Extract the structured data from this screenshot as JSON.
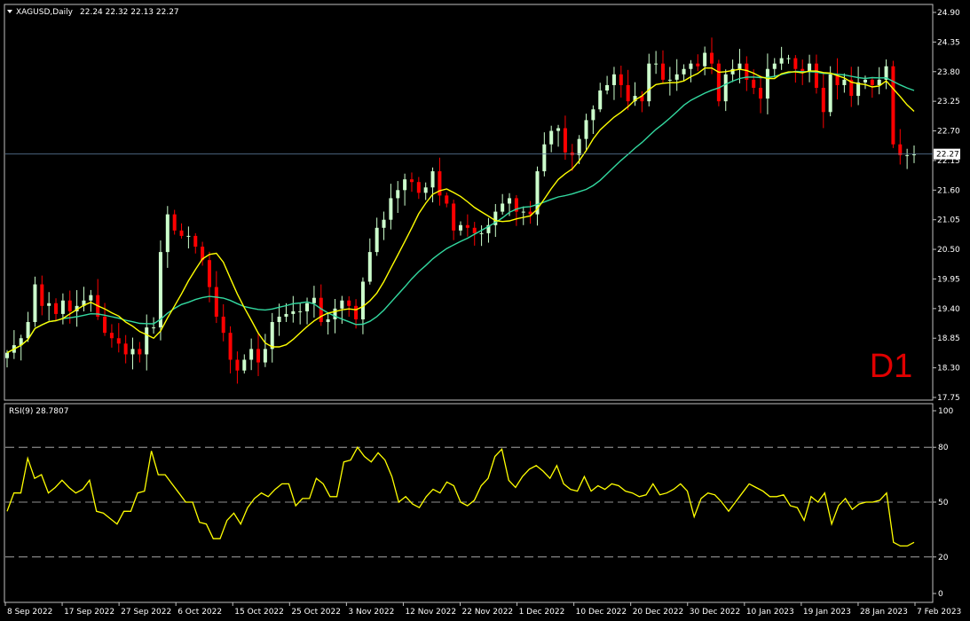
{
  "header": {
    "symbol": "XAGUSD,Daily",
    "ohlc": "22.24 22.32 22.13 22.27",
    "timeframe_badge": "D1"
  },
  "rsi_header": "RSI(9) 28.7807",
  "colors": {
    "background": "#000000",
    "bull_candle": "#ccffcc",
    "bear_candle": "#ff0000",
    "ma_fast": "#ffff00",
    "ma_slow": "#33d9a0",
    "rsi_line": "#ffff00",
    "current_price_line": "#5f7fa0",
    "badge": "#e00000"
  },
  "chart_data": [
    {
      "type": "candlestick",
      "symbol": "XAGUSD",
      "timeframe": "Daily",
      "ylim": [
        17.75,
        24.9
      ],
      "y_ticks": [
        "24.90",
        "24.35",
        "23.80",
        "23.25",
        "22.70",
        "22.15",
        "21.60",
        "21.05",
        "20.50",
        "19.95",
        "19.40",
        "18.85",
        "18.30",
        "17.75"
      ],
      "current_price_label": "22.27",
      "current_price": 22.27,
      "x_labels": [
        "8 Sep 2022",
        "17 Sep 2022",
        "27 Sep 2022",
        "6 Oct 2022",
        "15 Oct 2022",
        "25 Oct 2022",
        "3 Nov 2022",
        "12 Nov 2022",
        "22 Nov 2022",
        "1 Dec 2022",
        "10 Dec 2022",
        "20 Dec 2022",
        "30 Dec 2022",
        "10 Jan 2023",
        "19 Jan 2023",
        "28 Jan 2023",
        "7 Feb 2023"
      ],
      "close": [
        18.58,
        18.72,
        18.85,
        19.15,
        19.85,
        19.45,
        19.5,
        19.3,
        19.55,
        19.35,
        19.45,
        19.55,
        19.65,
        19.25,
        18.95,
        18.85,
        18.75,
        18.55,
        18.65,
        18.55,
        19.05,
        19.05,
        20.45,
        21.15,
        20.85,
        20.75,
        20.75,
        20.55,
        20.3,
        19.8,
        19.25,
        18.95,
        18.45,
        18.25,
        18.45,
        18.65,
        18.4,
        18.65,
        19.15,
        19.25,
        19.3,
        19.35,
        19.35,
        19.5,
        19.6,
        19.15,
        19.2,
        19.4,
        19.55,
        19.45,
        19.2,
        19.9,
        20.45,
        20.9,
        21.05,
        21.45,
        21.6,
        21.8,
        21.75,
        21.55,
        21.65,
        21.95,
        21.5,
        21.35,
        20.85,
        20.95,
        20.9,
        20.8,
        20.8,
        20.95,
        21.2,
        21.35,
        21.45,
        21.2,
        21.2,
        21.15,
        21.95,
        22.45,
        22.7,
        22.75,
        22.3,
        22.25,
        22.55,
        22.9,
        23.1,
        23.45,
        23.55,
        23.75,
        23.55,
        23.25,
        23.35,
        23.25,
        23.95,
        23.95,
        23.65,
        23.65,
        23.75,
        23.85,
        23.95,
        23.9,
        24.15,
        23.95,
        23.25,
        23.75,
        23.85,
        23.95,
        23.65,
        23.5,
        23.3,
        23.85,
        23.95,
        24.05,
        24.05,
        23.85,
        23.8,
        23.95,
        23.5,
        23.05,
        23.75,
        23.55,
        23.65,
        23.35,
        23.6,
        23.65,
        23.55,
        23.65,
        23.9,
        22.45,
        22.25,
        22.25,
        22.27
      ],
      "series": [
        {
          "name": "MA fast",
          "approx_levels": [
            18.9,
            19.3,
            19.65,
            19.2,
            19.3,
            21.0,
            21.3,
            22.2,
            23.1,
            23.7,
            23.7,
            23.25
          ]
        },
        {
          "name": "MA slow",
          "approx_levels": [
            19.5,
            19.35,
            19.4,
            19.9,
            20.6,
            21.1,
            21.9,
            22.7,
            23.1,
            23.0
          ]
        }
      ]
    },
    {
      "type": "line",
      "title": "RSI(9) 28.7807",
      "ylim": [
        0,
        100
      ],
      "y_ticks": [
        "100",
        "80",
        "50",
        "20",
        "0"
      ],
      "levels": [
        80,
        50,
        20
      ],
      "values": [
        45,
        55,
        55,
        74,
        63,
        65,
        55,
        58,
        62,
        58,
        55,
        57,
        62,
        45,
        44,
        41,
        38,
        45,
        45,
        55,
        56,
        78,
        65,
        65,
        60,
        55,
        50,
        50,
        39,
        38,
        30,
        30,
        40,
        44,
        38,
        47,
        52,
        55,
        53,
        57,
        60,
        60,
        48,
        52,
        52,
        63,
        60,
        53,
        53,
        72,
        73,
        80,
        75,
        72,
        77,
        73,
        64,
        50,
        53,
        49,
        47,
        53,
        57,
        55,
        61,
        59,
        50,
        48,
        51,
        59,
        63,
        75,
        79,
        62,
        58,
        64,
        68,
        70,
        67,
        63,
        70,
        60,
        57,
        56,
        64,
        56,
        59,
        57,
        60,
        59,
        56,
        55,
        53,
        54,
        60,
        54,
        55,
        57,
        60,
        56,
        42,
        52,
        55,
        54,
        50,
        45,
        50,
        55,
        60,
        58,
        56,
        53,
        53,
        54,
        48,
        47,
        40,
        53,
        50,
        55,
        38,
        48,
        52,
        46,
        49,
        50,
        50,
        51,
        55,
        28,
        26,
        26,
        28
      ]
    }
  ]
}
